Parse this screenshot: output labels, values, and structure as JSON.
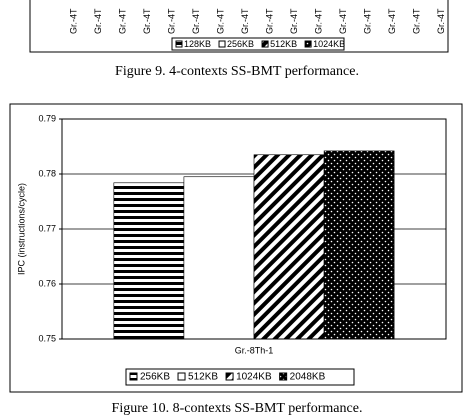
{
  "top_figure": {
    "x_labels": [
      "Gr.-4T",
      "Gr.-4T",
      "Gr.-4T",
      "Gr.-4T",
      "Gr.-4T",
      "Gr.-4T",
      "Gr.-4T",
      "Gr.-4T",
      "Gr.-4T",
      "Gr.-4T",
      "Gr.-4T",
      "Gr.-4T",
      "Gr.-4T",
      "Gr.-4T",
      "Gr.-4T",
      "Gr.-4T"
    ],
    "legend": [
      "128KB",
      "256KB",
      "512KB",
      "1024KB"
    ],
    "caption": "Figure 9. 4-contexts SS-BMT performance."
  },
  "chart_data": {
    "type": "bar",
    "y_label": "IPC (instructions/cycle)",
    "categories": [
      "Gr.-8Th-1"
    ],
    "series": [
      {
        "name": "256KB",
        "pattern": "horizontal-stripes",
        "values": [
          0.7784
        ]
      },
      {
        "name": "512KB",
        "pattern": "white",
        "values": [
          0.7795
        ]
      },
      {
        "name": "1024KB",
        "pattern": "diagonal-stripes",
        "values": [
          0.7835
        ]
      },
      {
        "name": "2048KB",
        "pattern": "black-dots",
        "values": [
          0.7842
        ]
      }
    ],
    "ylim": [
      0.75,
      0.79
    ],
    "yticks": [
      0.75,
      0.76,
      0.77,
      0.78,
      0.79
    ],
    "grid": true,
    "legend": "bottom"
  },
  "caption": "Figure 10. 8-contexts SS-BMT performance."
}
